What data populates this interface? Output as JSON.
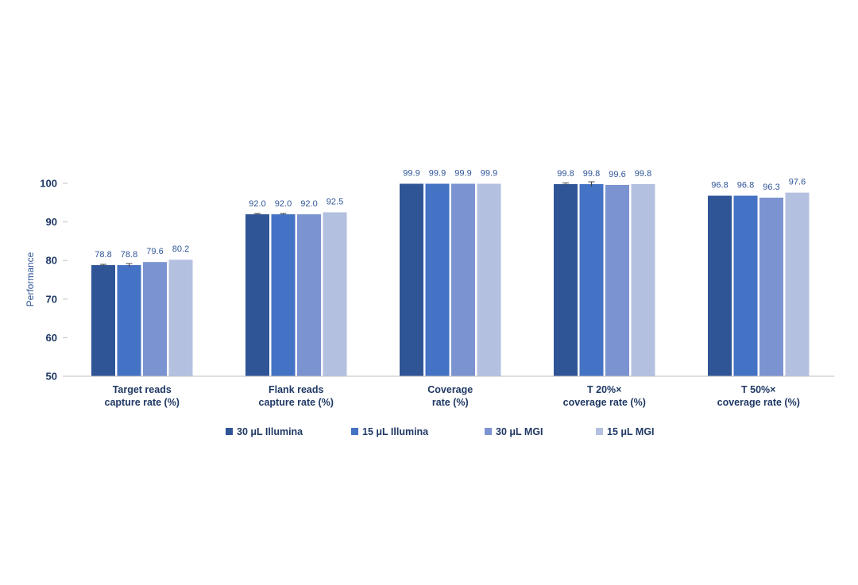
{
  "chart_data": {
    "type": "bar",
    "title": "",
    "xlabel": "",
    "ylabel": "Performance",
    "ylim": [
      50,
      100
    ],
    "yticks": [
      "50",
      "60",
      "70",
      "80",
      "90",
      "100"
    ],
    "grid": false,
    "legend_position": "bottom",
    "categories": [
      {
        "line1": "Target reads",
        "line2": "capture rate (%)"
      },
      {
        "line1": "Flank reads",
        "line2": "capture rate (%)"
      },
      {
        "line1": "Coverage",
        "line2": "rate (%)"
      },
      {
        "line1": "T 20%×",
        "line2": "coverage rate (%)"
      },
      {
        "line1": "T 50%×",
        "line2": "coverage rate (%)"
      }
    ],
    "series": [
      {
        "name": "30 μL Illumina",
        "color": "#2f5597",
        "values": [
          78.8,
          92.0,
          99.9,
          99.8,
          96.8
        ],
        "labels": [
          "78.8",
          "92.0",
          "99.9",
          "99.8",
          "96.8"
        ],
        "error": [
          0.2,
          0.2,
          0,
          0.3,
          0
        ]
      },
      {
        "name": "15 μL Illumina",
        "color": "#4472c4",
        "values": [
          78.8,
          92.0,
          99.9,
          99.8,
          96.8
        ],
        "labels": [
          "78.8",
          "92.0",
          "99.9",
          "99.8",
          "96.8"
        ],
        "error": [
          0.4,
          0.2,
          0,
          0.6,
          0
        ]
      },
      {
        "name": "30 μL MGI",
        "color": "#7b93d1",
        "values": [
          79.6,
          92.0,
          99.9,
          99.6,
          96.3
        ],
        "labels": [
          "79.6",
          "92.0",
          "99.9",
          "99.6",
          "96.3"
        ],
        "error": [
          0,
          0,
          0,
          0,
          0
        ]
      },
      {
        "name": "15 μL MGI",
        "color": "#b4c0e0",
        "values": [
          80.2,
          92.5,
          99.9,
          99.8,
          97.6
        ],
        "labels": [
          "80.2",
          "92.5",
          "99.9",
          "99.8",
          "97.6"
        ],
        "error": [
          0,
          0,
          0,
          0,
          0
        ]
      }
    ],
    "colors": {
      "axis_text": "#1f3864",
      "data_label": "#2f5597",
      "axis_line": "#bfbfbf"
    }
  }
}
